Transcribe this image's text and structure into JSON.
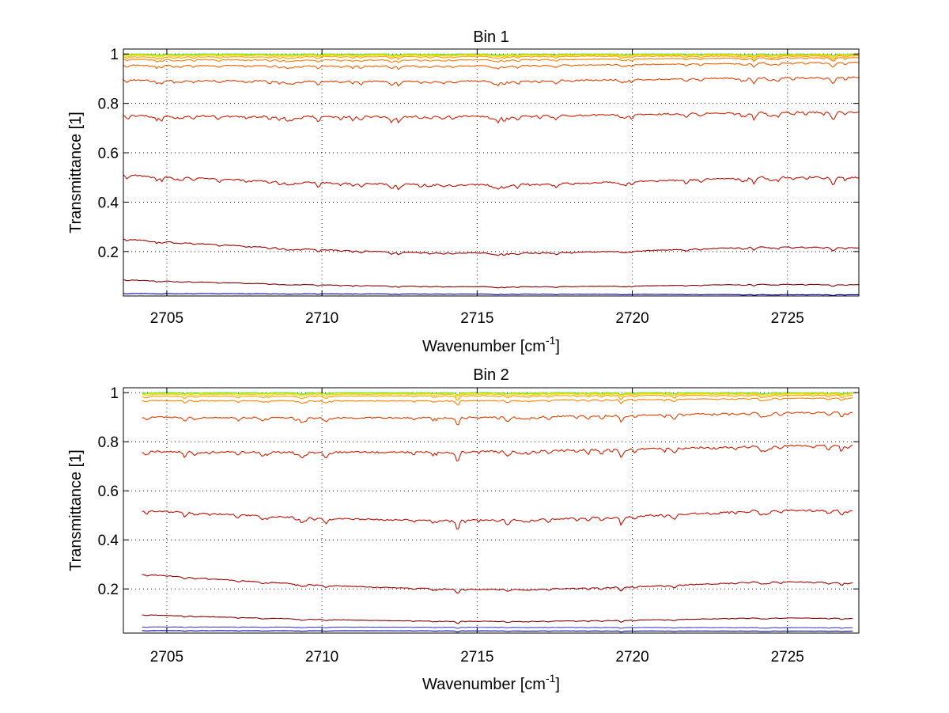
{
  "chart_data": [
    {
      "type": "line",
      "title": "Bin 1",
      "xlabel": "Wavenumber [cm",
      "xlabel_sup": "-1",
      "xlabel_suffix": "]",
      "ylabel": "Transmittance [1]",
      "xlim": [
        2703.6,
        2727.3
      ],
      "ylim": [
        0.02,
        1.02
      ],
      "xticks": [
        2705,
        2710,
        2715,
        2720,
        2725
      ],
      "xtick_labels": [
        "2705",
        "2710",
        "2715",
        "2720",
        "2725"
      ],
      "yticks": [
        0.2,
        0.4,
        0.6,
        0.8,
        1
      ],
      "ytick_labels": [
        "0.2",
        "0.4",
        "0.6",
        "0.8",
        "1"
      ],
      "grid": true,
      "x_range": [
        2703.6,
        2727.3
      ],
      "series": [
        {
          "color": "#00bfbf",
          "start": 1.0,
          "end": 1.0,
          "trough": 0.0,
          "noise": 0.002
        },
        {
          "color": "#80ff00",
          "start": 0.999,
          "end": 0.999,
          "trough": 0.0,
          "noise": 0.002
        },
        {
          "color": "#c8e000",
          "start": 0.997,
          "end": 0.998,
          "trough": 0.0,
          "noise": 0.002
        },
        {
          "color": "#ffd000",
          "start": 0.994,
          "end": 0.996,
          "trough": 0.0,
          "noise": 0.003
        },
        {
          "color": "#ffa000",
          "start": 0.988,
          "end": 0.992,
          "trough": 0.0,
          "noise": 0.004
        },
        {
          "color": "#ff8000",
          "start": 0.978,
          "end": 0.985,
          "trough": 0.005,
          "noise": 0.004
        },
        {
          "color": "#f06000",
          "start": 0.955,
          "end": 0.965,
          "trough": 0.008,
          "noise": 0.005
        },
        {
          "color": "#e04000",
          "start": 0.895,
          "end": 0.905,
          "trough": 0.01,
          "noise": 0.007
        },
        {
          "color": "#d02000",
          "start": 0.75,
          "end": 0.765,
          "trough": 0.01,
          "noise": 0.009
        },
        {
          "color": "#c01000",
          "start": 0.51,
          "end": 0.5,
          "trough": 0.035,
          "noise": 0.008
        },
        {
          "color": "#a00000",
          "start": 0.25,
          "end": 0.215,
          "trough": 0.04,
          "noise": 0.004
        },
        {
          "color": "#800000",
          "start": 0.085,
          "end": 0.065,
          "trough": 0.018,
          "noise": 0.002
        },
        {
          "color": "#0000a0",
          "start": 0.03,
          "end": 0.025,
          "trough": 0.0,
          "noise": 0.001
        }
      ]
    },
    {
      "type": "line",
      "title": "Bin 2",
      "xlabel": "Wavenumber [cm",
      "xlabel_sup": "-1",
      "xlabel_suffix": "]",
      "ylabel": "Transmittance [1]",
      "xlim": [
        2703.6,
        2727.3
      ],
      "ylim": [
        0.02,
        1.02
      ],
      "xticks": [
        2705,
        2710,
        2715,
        2720,
        2725
      ],
      "xtick_labels": [
        "2705",
        "2710",
        "2715",
        "2720",
        "2725"
      ],
      "yticks": [
        0.2,
        0.4,
        0.6,
        0.8,
        1
      ],
      "ytick_labels": [
        "0.2",
        "0.4",
        "0.6",
        "0.8",
        "1"
      ],
      "grid": true,
      "x_range": [
        2704.2,
        2727.1
      ],
      "series": [
        {
          "color": "#00bfbf",
          "start": 1.0,
          "end": 1.0,
          "trough": 0.0,
          "noise": 0.002
        },
        {
          "color": "#80ff00",
          "start": 0.999,
          "end": 0.999,
          "trough": 0.0,
          "noise": 0.002
        },
        {
          "color": "#c8e000",
          "start": 0.997,
          "end": 0.998,
          "trough": 0.0,
          "noise": 0.002
        },
        {
          "color": "#ffd000",
          "start": 0.993,
          "end": 0.995,
          "trough": 0.0,
          "noise": 0.003
        },
        {
          "color": "#ffa000",
          "start": 0.985,
          "end": 0.99,
          "trough": 0.0,
          "noise": 0.004
        },
        {
          "color": "#ff8000",
          "start": 0.968,
          "end": 0.978,
          "trough": 0.005,
          "noise": 0.004
        },
        {
          "color": "#e04000",
          "start": 0.9,
          "end": 0.92,
          "trough": 0.01,
          "noise": 0.007
        },
        {
          "color": "#d02000",
          "start": 0.76,
          "end": 0.785,
          "trough": 0.012,
          "noise": 0.009
        },
        {
          "color": "#c01000",
          "start": 0.52,
          "end": 0.52,
          "trough": 0.04,
          "noise": 0.008
        },
        {
          "color": "#a00000",
          "start": 0.26,
          "end": 0.225,
          "trough": 0.045,
          "noise": 0.004
        },
        {
          "color": "#800000",
          "start": 0.095,
          "end": 0.08,
          "trough": 0.02,
          "noise": 0.002
        },
        {
          "color": "#4040c0",
          "start": 0.045,
          "end": 0.042,
          "trough": 0.0,
          "noise": 0.001
        },
        {
          "color": "#0000a0",
          "start": 0.03,
          "end": 0.028,
          "trough": 0.0,
          "noise": 0.001
        }
      ]
    }
  ]
}
